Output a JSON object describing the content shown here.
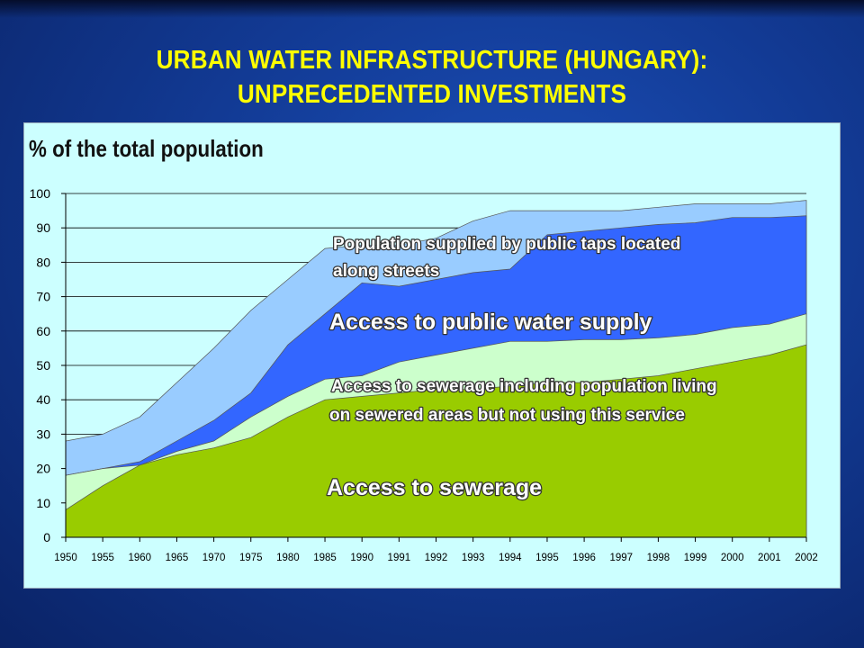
{
  "slide": {
    "title_line1": "URBAN WATER INFRASTRUCTURE (HUNGARY):",
    "title_line2": "UNPRECEDENTED INVESTMENTS"
  },
  "chart_data": {
    "type": "area",
    "ylabel": "% of the total population",
    "xlabel": "",
    "ylim": [
      0,
      100
    ],
    "yticks": [
      0,
      10,
      20,
      30,
      40,
      50,
      60,
      70,
      80,
      90,
      100
    ],
    "grid": true,
    "categories": [
      "1950",
      "1955",
      "1960",
      "1965",
      "1970",
      "1975",
      "1980",
      "1985",
      "1990",
      "1991",
      "1992",
      "1993",
      "1994",
      "1995",
      "1996",
      "1997",
      "1998",
      "1999",
      "2000",
      "2001",
      "2002"
    ],
    "series": [
      {
        "name": "Access to sewerage",
        "color": "#99cc00",
        "values": [
          8,
          15,
          21,
          24,
          26,
          29,
          35,
          40,
          41,
          42,
          43,
          43,
          44,
          45,
          45,
          46,
          47,
          49,
          51,
          53,
          56
        ]
      },
      {
        "name": "Access to sewerage including population living on sewered areas but not using this service",
        "color": "#ccffcc",
        "values": [
          18,
          20,
          21,
          25,
          28,
          35,
          41,
          46,
          47,
          51,
          53,
          55,
          57,
          57,
          57.5,
          57.5,
          58,
          59,
          61,
          62,
          65
        ]
      },
      {
        "name": "Access to public water supply",
        "color": "#3366ff",
        "values": [
          18,
          20,
          22,
          28,
          34,
          42,
          56,
          65,
          74,
          73,
          75,
          77,
          78,
          88,
          89,
          90,
          91,
          91.5,
          93,
          93,
          93.5
        ]
      },
      {
        "name": "Population supplied by public taps located along streets",
        "color": "#99ccff",
        "values": [
          28,
          30,
          35,
          45,
          55,
          66,
          75,
          84,
          85,
          85,
          87,
          92,
          95,
          95,
          95,
          95,
          96,
          97,
          97,
          97,
          98
        ]
      }
    ],
    "annotations": {
      "taps_line1": "Population supplied by public taps located",
      "taps_line2": "along streets",
      "water": "Access to public water supply",
      "sewer_incl_line1": "Access  to sewerage including population living",
      "sewer_incl_line2": "on sewered areas but not using this service",
      "sewer": "Access to sewerage"
    }
  }
}
